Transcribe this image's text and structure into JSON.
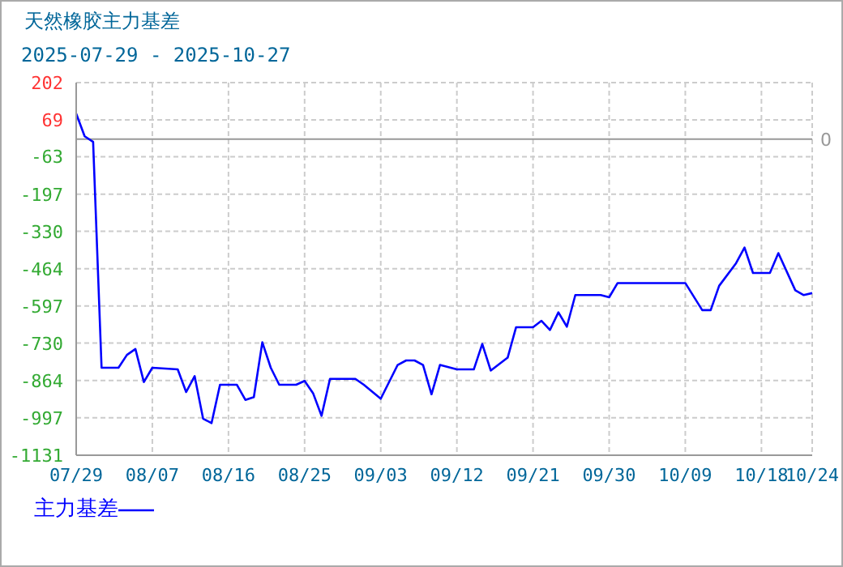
{
  "chart_data": {
    "type": "line",
    "title": "天然橡胶主力基差",
    "subtitle": "2025-07-29 - 2025-10-27",
    "x": [
      "2025-07-29",
      "2025-07-30",
      "2025-07-31",
      "2025-08-01",
      "2025-08-03",
      "2025-08-04",
      "2025-08-05",
      "2025-08-06",
      "2025-08-07",
      "2025-08-10",
      "2025-08-11",
      "2025-08-12",
      "2025-08-13",
      "2025-08-14",
      "2025-08-15",
      "2025-08-17",
      "2025-08-18",
      "2025-08-19",
      "2025-08-20",
      "2025-08-21",
      "2025-08-22",
      "2025-08-24",
      "2025-08-25",
      "2025-08-26",
      "2025-08-27",
      "2025-08-28",
      "2025-08-31",
      "2025-09-01",
      "2025-09-03",
      "2025-09-05",
      "2025-09-06",
      "2025-09-07",
      "2025-09-08",
      "2025-09-09",
      "2025-09-10",
      "2025-09-12",
      "2025-09-14",
      "2025-09-15",
      "2025-09-16",
      "2025-09-18",
      "2025-09-19",
      "2025-09-21",
      "2025-09-22",
      "2025-09-23",
      "2025-09-24",
      "2025-09-25",
      "2025-09-26",
      "2025-09-29",
      "2025-09-30",
      "2025-10-01",
      "2025-10-09",
      "2025-10-11",
      "2025-10-12",
      "2025-10-13",
      "2025-10-15",
      "2025-10-16",
      "2025-10-17",
      "2025-10-19",
      "2025-10-20",
      "2025-10-22",
      "2025-10-23",
      "2025-10-24"
    ],
    "series": [
      {
        "name": "主力基差",
        "color": "#0000ff",
        "values": [
          91,
          10,
          -10,
          -818,
          -818,
          -772,
          -751,
          -869,
          -818,
          -824,
          -905,
          -848,
          -1000,
          -1016,
          -879,
          -879,
          -933,
          -923,
          -727,
          -818,
          -879,
          -879,
          -865,
          -909,
          -990,
          -858,
          -858,
          -879,
          -929,
          -808,
          -792,
          -792,
          -808,
          -913,
          -808,
          -824,
          -824,
          -733,
          -828,
          -782,
          -673,
          -673,
          -650,
          -683,
          -620,
          -671,
          -558,
          -558,
          -566,
          -515,
          -515,
          -612,
          -612,
          -525,
          -444,
          -388,
          -479,
          -479,
          -408,
          -541,
          -558,
          -551
        ]
      }
    ],
    "xlim": [
      "2025-07-29",
      "2025-10-24"
    ],
    "xticks": [
      {
        "value": "2025-07-29",
        "label": "07/29"
      },
      {
        "value": "2025-08-07",
        "label": "08/07"
      },
      {
        "value": "2025-08-16",
        "label": "08/16"
      },
      {
        "value": "2025-08-25",
        "label": "08/25"
      },
      {
        "value": "2025-09-03",
        "label": "09/03"
      },
      {
        "value": "2025-09-12",
        "label": "09/12"
      },
      {
        "value": "2025-09-21",
        "label": "09/21"
      },
      {
        "value": "2025-09-30",
        "label": "09/30"
      },
      {
        "value": "2025-10-09",
        "label": "10/09"
      },
      {
        "value": "2025-10-18",
        "label": "10/18"
      },
      {
        "value": "2025-10-24",
        "label": "10/24"
      }
    ],
    "ylim": [
      -1131,
      202
    ],
    "yticks": [
      202,
      69,
      -63,
      -197,
      -330,
      -464,
      -597,
      -730,
      -864,
      -997,
      -1131
    ],
    "ref_lines": [
      {
        "axis": "y",
        "value": 0,
        "label": "0",
        "color": "#999999"
      }
    ],
    "grid": true,
    "legend": "bottom left",
    "marker": "none",
    "line_style": "solid"
  }
}
